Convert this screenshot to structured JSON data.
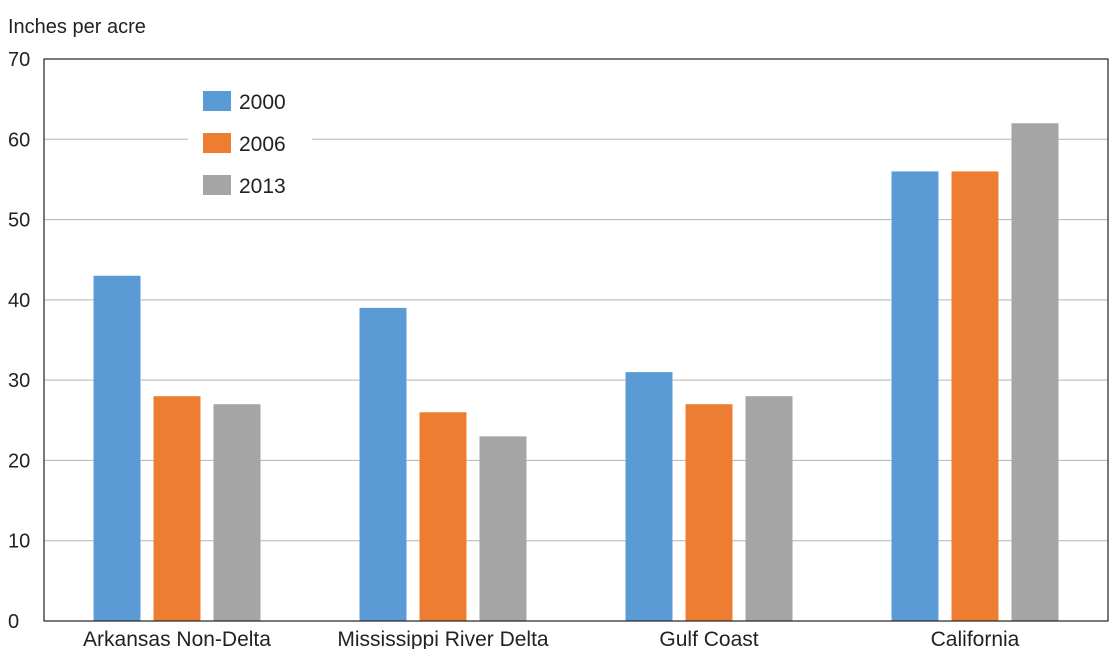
{
  "chart_data": {
    "type": "bar",
    "title": "",
    "ylabel": "Inches per acre",
    "xlabel": "",
    "categories": [
      "Arkansas Non-Delta",
      "Mississippi River Delta",
      "Gulf Coast",
      "California"
    ],
    "series": [
      {
        "name": "2000",
        "color": "#5b9bd5",
        "values": [
          43,
          39,
          31,
          56
        ]
      },
      {
        "name": "2006",
        "color": "#ed7d31",
        "values": [
          28,
          26,
          27,
          56
        ]
      },
      {
        "name": "2013",
        "color": "#a5a5a5",
        "values": [
          27,
          23,
          28,
          62
        ]
      }
    ],
    "ylim": [
      0,
      70
    ],
    "yticks": [
      "0",
      "10",
      "20",
      "30",
      "40",
      "50",
      "60",
      "70"
    ],
    "grid": true,
    "legend_position": "top-left"
  }
}
